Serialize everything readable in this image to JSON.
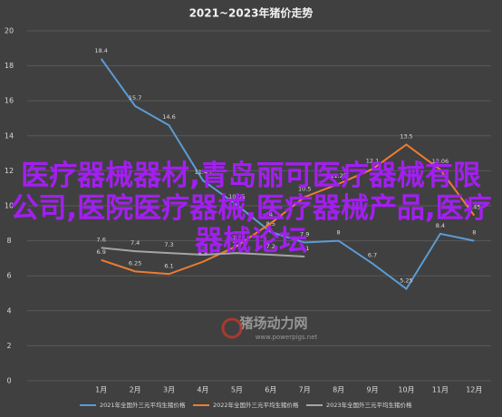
{
  "chart_data": {
    "type": "line",
    "title": "2021~2023年猪价走势",
    "categories": [
      "1月",
      "2月",
      "3月",
      "4月",
      "5月",
      "6月",
      "7月",
      "8月",
      "9月",
      "10月",
      "11月",
      "12月"
    ],
    "series": [
      {
        "name": "2021年全国外三元平均生猪价格",
        "color": "#5b9bd5",
        "values": [
          18.4,
          15.7,
          14.6,
          11.45,
          10.05,
          8.5,
          7.9,
          8.0,
          6.7,
          5.25,
          8.4,
          8.0
        ]
      },
      {
        "name": "2022年全国外三元平均生猪价格",
        "color": "#ed7d31",
        "values": [
          6.9,
          6.25,
          6.1,
          6.8,
          7.7,
          9.0,
          10.5,
          11.25,
          12.1,
          13.5,
          12.06,
          9.45
        ]
      },
      {
        "name": "2023年全国外三元平均生猪价格",
        "color": "#a5a5a5",
        "values": [
          7.6,
          7.4,
          7.3,
          7.2,
          7.3,
          7.2,
          7.1,
          null,
          null,
          null,
          null,
          null
        ]
      }
    ],
    "ylim": [
      0,
      20
    ],
    "yticks": [
      0,
      2,
      4,
      6,
      8,
      10,
      12,
      14,
      16,
      18,
      20
    ],
    "grid": true,
    "watermark": "医疗器械器材,青岛丽可医疗器械有限公司,医院医疗器械,医疗器械产品,医疗器械论坛",
    "logo": "猪场动力网",
    "logo_url": "www.powerpigs.net"
  }
}
